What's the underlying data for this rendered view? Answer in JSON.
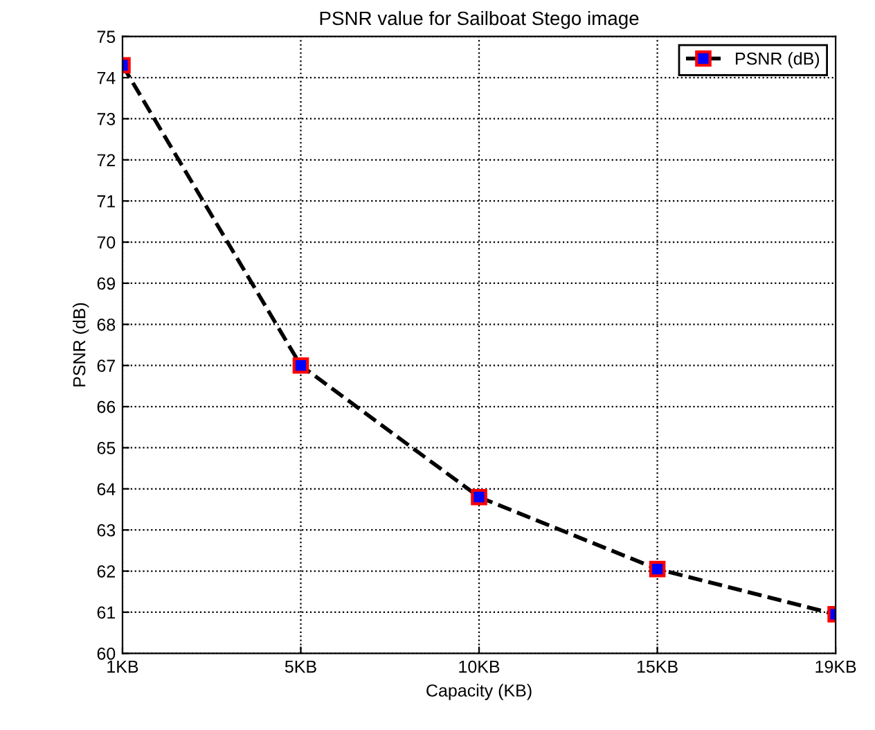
{
  "chart_data": {
    "type": "line",
    "title": "PSNR value for Sailboat Stego image",
    "xlabel": "Capacity (KB)",
    "ylabel": "PSNR (dB)",
    "categories": [
      "1KB",
      "5KB",
      "10KB",
      "15KB",
      "19KB"
    ],
    "series": [
      {
        "name": "PSNR (dB)",
        "color": "#000000",
        "values": [
          74.3,
          67.0,
          63.8,
          62.05,
          60.95
        ]
      }
    ],
    "ylim": [
      60,
      75
    ],
    "yticks": [
      60,
      61,
      62,
      63,
      64,
      65,
      66,
      67,
      68,
      69,
      70,
      71,
      72,
      73,
      74,
      75
    ],
    "grid": true,
    "legend": "top right",
    "marker": "square",
    "line_style": "dashed"
  }
}
